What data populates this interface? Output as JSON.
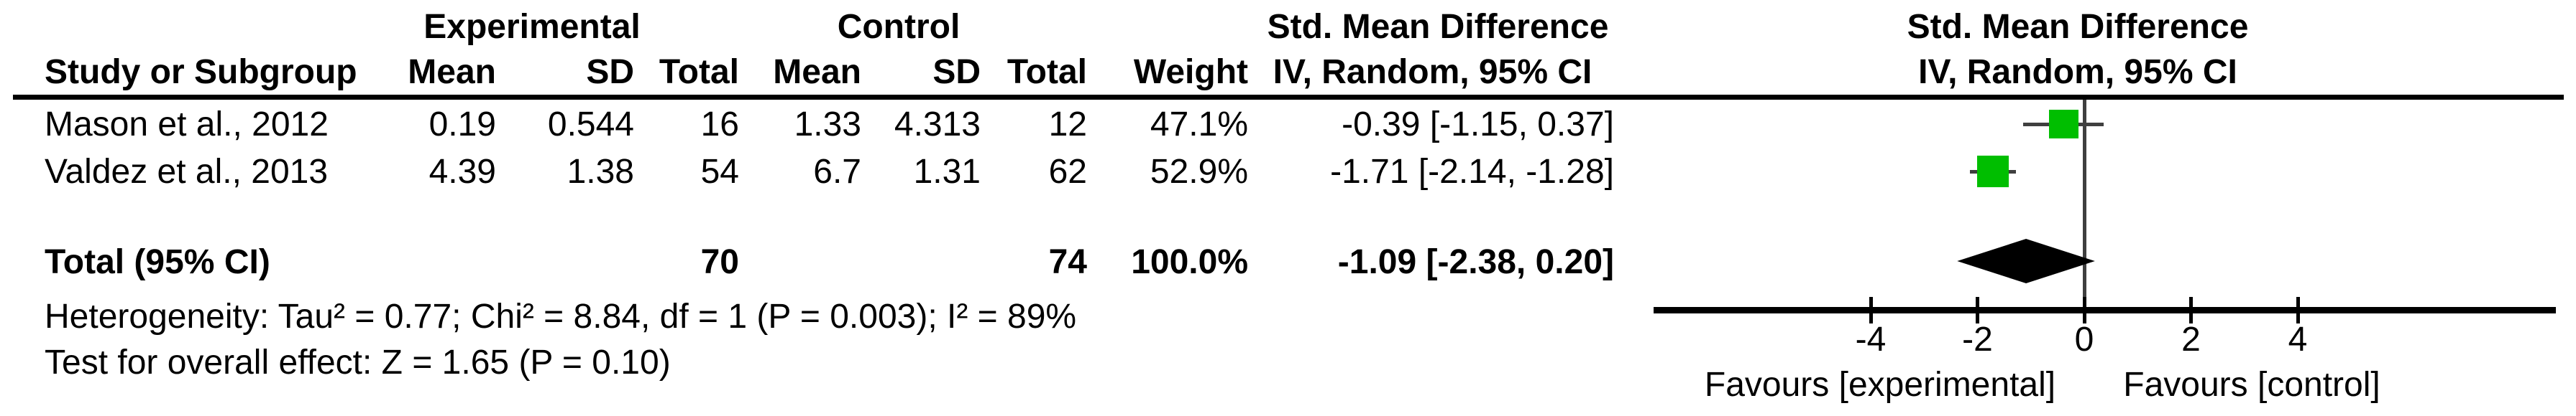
{
  "table": {
    "group_headers": {
      "experimental": "Experimental",
      "control": "Control",
      "smd_text_col": "Std. Mean Difference",
      "smd_plot_col": "Std. Mean Difference"
    },
    "column_headers": {
      "study": "Study or Subgroup",
      "exp_mean": "Mean",
      "exp_sd": "SD",
      "exp_total": "Total",
      "ctrl_mean": "Mean",
      "ctrl_sd": "SD",
      "ctrl_total": "Total",
      "weight": "Weight",
      "ci_text": "IV, Random, 95% CI",
      "ci_plot": "IV, Random, 95% CI"
    },
    "rows": [
      {
        "study": "Mason et al., 2012",
        "exp_mean": "0.19",
        "exp_sd": "0.544",
        "exp_total": "16",
        "ctrl_mean": "1.33",
        "ctrl_sd": "4.313",
        "ctrl_total": "12",
        "weight": "47.1%",
        "effect": "-0.39 [-1.15, 0.37]"
      },
      {
        "study": "Valdez et al., 2013",
        "exp_mean": "4.39",
        "exp_sd": "1.38",
        "exp_total": "54",
        "ctrl_mean": "6.7",
        "ctrl_sd": "1.31",
        "ctrl_total": "62",
        "weight": "52.9%",
        "effect": "-1.71 [-2.14, -1.28]"
      }
    ],
    "total_row": {
      "label": "Total (95% CI)",
      "exp_total": "70",
      "ctrl_total": "74",
      "weight": "100.0%",
      "effect": "-1.09 [-2.38, 0.20]"
    },
    "footer": {
      "heterogeneity": "Heterogeneity: Tau² = 0.77; Chi² = 8.84, df = 1 (P = 0.003); I² = 89%",
      "overall_effect": "Test for overall effect: Z = 1.65 (P = 0.10)"
    }
  },
  "plot": {
    "favours_left": "Favours [experimental]",
    "favours_right": "Favours [control]",
    "marker_color": "#00be00",
    "line_color": "#3f3f3f",
    "diamond_color": "#000000"
  },
  "chart_data": {
    "type": "scatter",
    "subtype": "forest_plot",
    "title": "",
    "effect_measure": "Std. Mean Difference",
    "model": "IV, Random, 95% CI",
    "xlabel_left": "Favours [experimental]",
    "xlabel_right": "Favours [control]",
    "xlim": [
      -8.1,
      8.8
    ],
    "axis": {
      "ticks": [
        -4,
        -2,
        0,
        2,
        4
      ]
    },
    "studies": [
      {
        "name": "Mason et al., 2012",
        "experimental": {
          "mean": 0.19,
          "sd": 0.544,
          "n": 16
        },
        "control": {
          "mean": 1.33,
          "sd": 4.313,
          "n": 12
        },
        "weight_pct": 47.1,
        "smd": -0.39,
        "ci": [
          -1.15,
          0.37
        ]
      },
      {
        "name": "Valdez et al., 2013",
        "experimental": {
          "mean": 4.39,
          "sd": 1.38,
          "n": 54
        },
        "control": {
          "mean": 6.7,
          "sd": 1.31,
          "n": 62
        },
        "weight_pct": 52.9,
        "smd": -1.71,
        "ci": [
          -2.14,
          -1.28
        ]
      }
    ],
    "total": {
      "label": "Total (95% CI)",
      "n_experimental": 70,
      "n_control": 74,
      "weight_pct": 100.0,
      "smd": -1.09,
      "ci": [
        -2.38,
        0.2
      ]
    },
    "heterogeneity": {
      "tau2": 0.77,
      "chi2": 8.84,
      "df": 1,
      "p": 0.003,
      "i2_pct": 89
    },
    "overall_effect": {
      "z": 1.65,
      "p": 0.1
    }
  }
}
